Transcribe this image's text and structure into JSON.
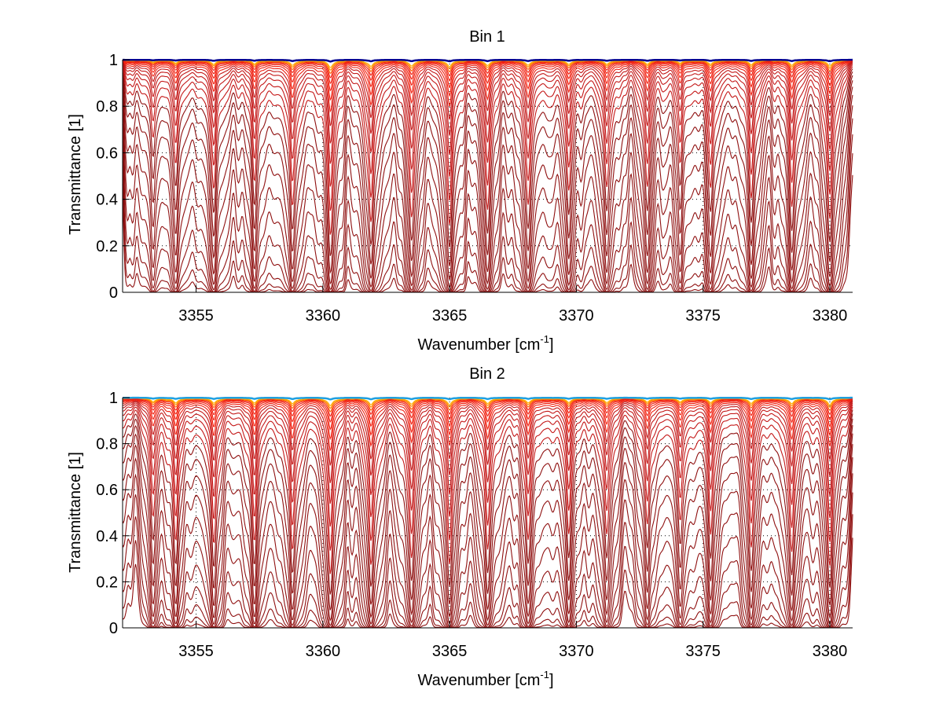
{
  "chart_data": [
    {
      "type": "line",
      "title": "Bin 1",
      "xlabel": "Wavenumber [cm",
      "xlabel_superscript": "-1",
      "xlabel_suffix": "]",
      "ylabel": "Transmittance [1]",
      "xlim": [
        3352.1,
        3380.9
      ],
      "ylim": [
        0,
        1
      ],
      "xticks": [
        3355,
        3360,
        3365,
        3370,
        3375,
        3380
      ],
      "xtick_labels": [
        "3355",
        "3360",
        "3365",
        "3370",
        "3375",
        "3380"
      ],
      "yticks": [
        0,
        0.2,
        0.4,
        0.6,
        0.8,
        1
      ],
      "ytick_labels": [
        "0",
        "0.2",
        "0.4",
        "0.6",
        "0.8",
        "1"
      ],
      "grid": "dotted",
      "series_description": "family of transmittance spectra at increasing absorber amount",
      "num_series": 26,
      "absorption_lines": [
        {
          "center": 3353.3,
          "strength": 0.5
        },
        {
          "center": 3354.2,
          "strength": 0.8
        },
        {
          "center": 3355.7,
          "strength": 1.0
        },
        {
          "center": 3357.3,
          "strength": 1.0
        },
        {
          "center": 3358.8,
          "strength": 1.3
        },
        {
          "center": 3360.3,
          "strength": 1.8
        },
        {
          "center": 3361.9,
          "strength": 1.7
        },
        {
          "center": 3363.5,
          "strength": 1.5
        },
        {
          "center": 3365.0,
          "strength": 1.6
        },
        {
          "center": 3366.5,
          "strength": 1.3
        },
        {
          "center": 3368.1,
          "strength": 1.2
        },
        {
          "center": 3369.7,
          "strength": 1.1
        },
        {
          "center": 3371.2,
          "strength": 1.0
        },
        {
          "center": 3372.8,
          "strength": 1.0
        },
        {
          "center": 3374.1,
          "strength": 0.8
        },
        {
          "center": 3375.3,
          "strength": 1.0
        },
        {
          "center": 3376.9,
          "strength": 1.2
        },
        {
          "center": 3378.5,
          "strength": 1.3
        },
        {
          "center": 3380.0,
          "strength": 1.5
        }
      ],
      "top_series_color": "#00008f"
    },
    {
      "type": "line",
      "title": "Bin 2",
      "xlabel": "Wavenumber [cm",
      "xlabel_superscript": "-1",
      "xlabel_suffix": "]",
      "ylabel": "Transmittance [1]",
      "xlim": [
        3352.1,
        3380.9
      ],
      "ylim": [
        0,
        1
      ],
      "xticks": [
        3355,
        3360,
        3365,
        3370,
        3375,
        3380
      ],
      "xtick_labels": [
        "3355",
        "3360",
        "3365",
        "3370",
        "3375",
        "3380"
      ],
      "yticks": [
        0,
        0.2,
        0.4,
        0.6,
        0.8,
        1
      ],
      "ytick_labels": [
        "0",
        "0.2",
        "0.4",
        "0.6",
        "0.8",
        "1"
      ],
      "grid": "dotted",
      "series_description": "family of transmittance spectra at increasing absorber amount",
      "num_series": 26,
      "absorption_lines": [
        {
          "center": 3353.3,
          "strength": 0.9
        },
        {
          "center": 3354.2,
          "strength": 1.3
        },
        {
          "center": 3355.7,
          "strength": 1.4
        },
        {
          "center": 3357.3,
          "strength": 1.3
        },
        {
          "center": 3358.8,
          "strength": 1.5
        },
        {
          "center": 3360.3,
          "strength": 2.0
        },
        {
          "center": 3361.9,
          "strength": 1.8
        },
        {
          "center": 3363.5,
          "strength": 1.6
        },
        {
          "center": 3365.0,
          "strength": 1.7
        },
        {
          "center": 3366.5,
          "strength": 1.4
        },
        {
          "center": 3368.1,
          "strength": 1.3
        },
        {
          "center": 3369.7,
          "strength": 1.2
        },
        {
          "center": 3371.2,
          "strength": 1.1
        },
        {
          "center": 3372.8,
          "strength": 1.1
        },
        {
          "center": 3374.1,
          "strength": 0.9
        },
        {
          "center": 3375.3,
          "strength": 1.2
        },
        {
          "center": 3376.9,
          "strength": 1.4
        },
        {
          "center": 3378.5,
          "strength": 1.5
        },
        {
          "center": 3380.0,
          "strength": 1.8
        }
      ],
      "top_series_color": "#1fa0e0"
    }
  ]
}
